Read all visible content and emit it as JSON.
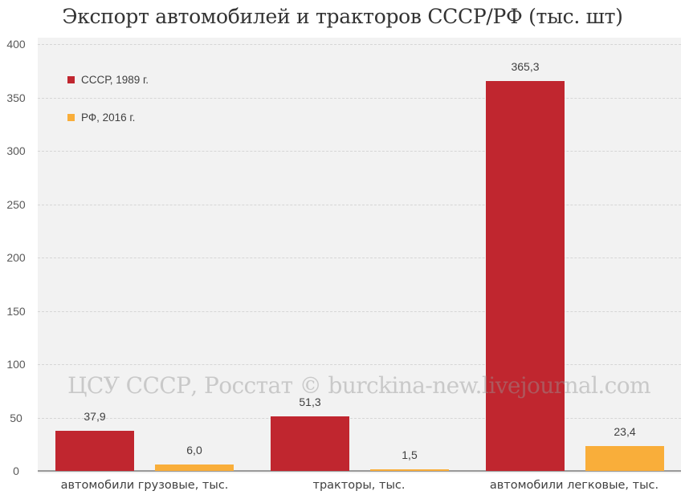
{
  "title": "Экспорт автомобилей и тракторов СССР/РФ (тыс. шт)",
  "watermark": "ЦСУ СССР, Росстат © burckina-new.livejournal.com",
  "colors": {
    "ussr": "#C0262F",
    "rf": "#F9AE3A",
    "plot_bg": "#F2F2F2"
  },
  "legend": {
    "items": [
      {
        "label": "СССР, 1989 г.",
        "color": "#C0262F"
      },
      {
        "label": "РФ, 2016 г.",
        "color": "#F9AE3A"
      }
    ]
  },
  "y_axis": {
    "ticks": [
      "400",
      "350",
      "300",
      "250",
      "200",
      "150",
      "100",
      "50",
      "0"
    ]
  },
  "value_labels": {
    "ussr": [
      "37,9",
      "51,3",
      "365,3"
    ],
    "rf": [
      "6,0",
      "1,5",
      "23,4"
    ]
  },
  "categories": [
    "автомобили грузовые, тыс.",
    "тракторы, тыс.",
    "автомобили легковые, тыс."
  ],
  "chart_data": {
    "type": "bar",
    "title": "Экспорт автомобилей и тракторов СССР/РФ (тыс. шт)",
    "categories": [
      "автомобили грузовые, тыс.",
      "тракторы, тыс.",
      "автомобили легковые, тыс."
    ],
    "series": [
      {
        "name": "СССР, 1989 г.",
        "color": "#C0262F",
        "values": [
          37.9,
          51.3,
          365.3
        ]
      },
      {
        "name": "РФ, 2016 г.",
        "color": "#F9AE3A",
        "values": [
          6.0,
          1.5,
          23.4
        ]
      }
    ],
    "xlabel": "",
    "ylabel": "",
    "ylim": [
      0,
      400
    ],
    "yticks": [
      0,
      50,
      100,
      150,
      200,
      250,
      300,
      350,
      400
    ],
    "grid": true,
    "legend_position": "upper left (inside)",
    "data_labels": true,
    "annotations": [
      "ЦСУ СССР, Росстат © burckina-new.livejournal.com"
    ]
  }
}
